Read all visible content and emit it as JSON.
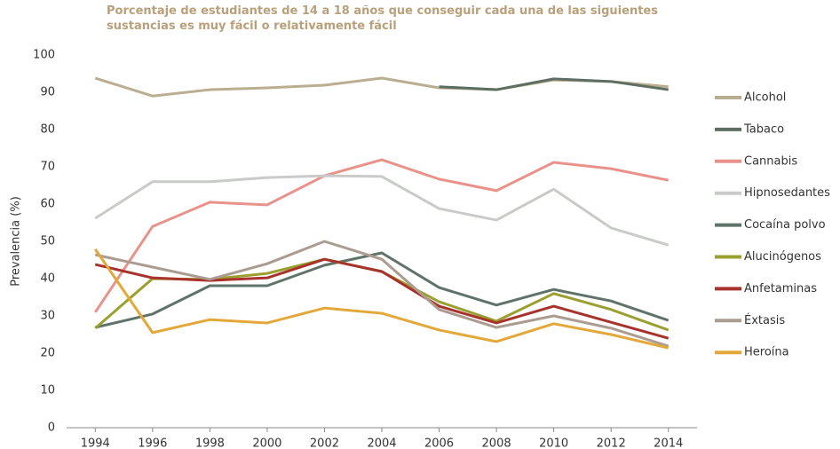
{
  "chart_data": {
    "type": "line",
    "title": "Porcentaje de estudiantes de 14 a 18 años que conseguir cada una de las siguientes sustancias es muy fácil o relativamente fácil",
    "ylabel": "Prevalencia (%)",
    "x": [
      1994,
      1996,
      1998,
      2000,
      2002,
      2004,
      2006,
      2008,
      2010,
      2012,
      2014
    ],
    "xlim": [
      1993,
      2015
    ],
    "xticks": [
      1994,
      1996,
      1998,
      2000,
      2002,
      2004,
      2006,
      2008,
      2010,
      2012,
      2014
    ],
    "ylim": [
      0,
      100
    ],
    "yticks": [
      0,
      10,
      20,
      30,
      40,
      50,
      60,
      70,
      80,
      90,
      100
    ],
    "grid": false,
    "legend": "right",
    "series": [
      {
        "name": "Alcohol",
        "color": "#b9ae90",
        "values": [
          93.8,
          89,
          90.7,
          91.2,
          91.9,
          93.8,
          91.2,
          90.7,
          93.3,
          92.9,
          91.5
        ]
      },
      {
        "name": "Tabaco",
        "color": "#5e6e62",
        "values": [
          null,
          null,
          null,
          null,
          null,
          null,
          91.5,
          90.7,
          93.6,
          92.9,
          90.7
        ]
      },
      {
        "name": "Cannabis",
        "color": "#e8928a",
        "values": [
          31,
          54,
          60.5,
          59.8,
          67.6,
          71.9,
          66.7,
          63.6,
          71.2,
          69.5,
          66.4
        ]
      },
      {
        "name": "Hipnosedantes",
        "color": "#c9cbc8",
        "values": [
          56.2,
          66,
          66,
          67.1,
          67.6,
          67.4,
          58.8,
          55.7,
          64,
          53.6,
          49
        ]
      },
      {
        "name": "Cocaína polvo",
        "color": "#5f7369",
        "values": [
          26.9,
          30.5,
          38.1,
          38.1,
          43.6,
          46.9,
          37.6,
          32.9,
          37.1,
          34,
          28.8
        ]
      },
      {
        "name": "Alucinógenos",
        "color": "#9aa030",
        "values": [
          26.7,
          40,
          39.8,
          41.4,
          45.2,
          41.9,
          33.8,
          28.6,
          36,
          31.7,
          26.2
        ]
      },
      {
        "name": "Anfetaminas",
        "color": "#a8322c",
        "values": [
          43.8,
          40.2,
          39.5,
          40.2,
          45.2,
          41.9,
          32.6,
          28.1,
          32.6,
          28.3,
          24
        ]
      },
      {
        "name": "Éxtasis",
        "color": "#ab9c92",
        "values": [
          46.4,
          43.1,
          39.8,
          44,
          50,
          45.2,
          31.7,
          26.9,
          30,
          26.7,
          21.9
        ]
      },
      {
        "name": "Heroína",
        "color": "#e2a83a",
        "values": [
          47.9,
          25.5,
          29,
          28.1,
          32.1,
          30.7,
          26.2,
          23.1,
          27.9,
          25,
          21.4
        ]
      }
    ]
  }
}
